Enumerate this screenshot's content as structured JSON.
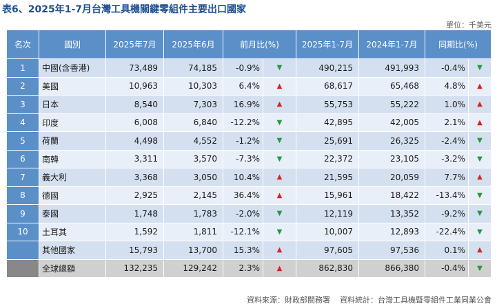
{
  "title": "表6、2025年1-7月台灣工具機關鍵零組件主要出口國家",
  "unit": "單位：千美元",
  "headers": [
    "名次",
    "國別",
    "2025年7月",
    "2025年6月",
    "前月比(%)",
    "2025年1-7月",
    "2024年1-7月",
    "同期比(%)"
  ],
  "rows": [
    {
      "rank": "1",
      "country": "中國(含香港)",
      "jul": "73,489",
      "jun": "74,185",
      "mom": "-0.9%",
      "mom_dir": "down",
      "ytd25": "490,215",
      "ytd24": "491,993",
      "yoy": "-0.4%",
      "yoy_dir": "down"
    },
    {
      "rank": "2",
      "country": "美國",
      "jul": "10,963",
      "jun": "10,303",
      "mom": "6.4%",
      "mom_dir": "up",
      "ytd25": "68,617",
      "ytd24": "65,468",
      "yoy": "4.8%",
      "yoy_dir": "up"
    },
    {
      "rank": "3",
      "country": "日本",
      "jul": "8,540",
      "jun": "7,303",
      "mom": "16.9%",
      "mom_dir": "up",
      "ytd25": "55,753",
      "ytd24": "55,222",
      "yoy": "1.0%",
      "yoy_dir": "up"
    },
    {
      "rank": "4",
      "country": "印度",
      "jul": "6,008",
      "jun": "6,840",
      "mom": "-12.2%",
      "mom_dir": "down",
      "ytd25": "42,895",
      "ytd24": "42,005",
      "yoy": "2.1%",
      "yoy_dir": "up"
    },
    {
      "rank": "5",
      "country": "荷蘭",
      "jul": "4,498",
      "jun": "4,552",
      "mom": "-1.2%",
      "mom_dir": "down",
      "ytd25": "25,691",
      "ytd24": "26,325",
      "yoy": "-2.4%",
      "yoy_dir": "down"
    },
    {
      "rank": "6",
      "country": "南韓",
      "jul": "3,311",
      "jun": "3,570",
      "mom": "-7.3%",
      "mom_dir": "down",
      "ytd25": "22,372",
      "ytd24": "23,105",
      "yoy": "-3.2%",
      "yoy_dir": "down"
    },
    {
      "rank": "7",
      "country": "義大利",
      "jul": "3,368",
      "jun": "3,050",
      "mom": "10.4%",
      "mom_dir": "up",
      "ytd25": "21,595",
      "ytd24": "20,059",
      "yoy": "7.7%",
      "yoy_dir": "up"
    },
    {
      "rank": "8",
      "country": "德國",
      "jul": "2,925",
      "jun": "2,145",
      "mom": "36.4%",
      "mom_dir": "up",
      "ytd25": "15,961",
      "ytd24": "18,422",
      "yoy": "-13.4%",
      "yoy_dir": "down"
    },
    {
      "rank": "9",
      "country": "泰國",
      "jul": "1,748",
      "jun": "1,783",
      "mom": "-2.0%",
      "mom_dir": "down",
      "ytd25": "12,119",
      "ytd24": "13,352",
      "yoy": "-9.2%",
      "yoy_dir": "down"
    },
    {
      "rank": "10",
      "country": "土耳其",
      "jul": "1,592",
      "jun": "1,811",
      "mom": "-12.1%",
      "mom_dir": "down",
      "ytd25": "10,007",
      "ytd24": "12,893",
      "yoy": "-22.4%",
      "yoy_dir": "down"
    },
    {
      "rank": "",
      "country": "其他國家",
      "jul": "15,793",
      "jun": "13,700",
      "mom": "15.3%",
      "mom_dir": "up",
      "ytd25": "97,605",
      "ytd24": "97,536",
      "yoy": "0.1%",
      "yoy_dir": "up"
    },
    {
      "rank": "",
      "country": "全球總額",
      "jul": "132,235",
      "jun": "129,242",
      "mom": "2.3%",
      "mom_dir": "up",
      "ytd25": "862,830",
      "ytd24": "866,380",
      "yoy": "-0.4%",
      "yoy_dir": "down",
      "total": true
    }
  ],
  "arrows": {
    "up": "▲",
    "down": "▼"
  },
  "colors": {
    "header": "#5a8fc8",
    "row_odd": "#d4e0f0",
    "row_even": "#e9eff8",
    "up": "#d52323",
    "down": "#1f9a3c",
    "title": "#1d4f91",
    "total_row": "#d0d0d0"
  },
  "footer": {
    "source": "資料來源：財政部關務署",
    "stats": "資料統計：台灣工具機暨零組件工業同業公會"
  }
}
